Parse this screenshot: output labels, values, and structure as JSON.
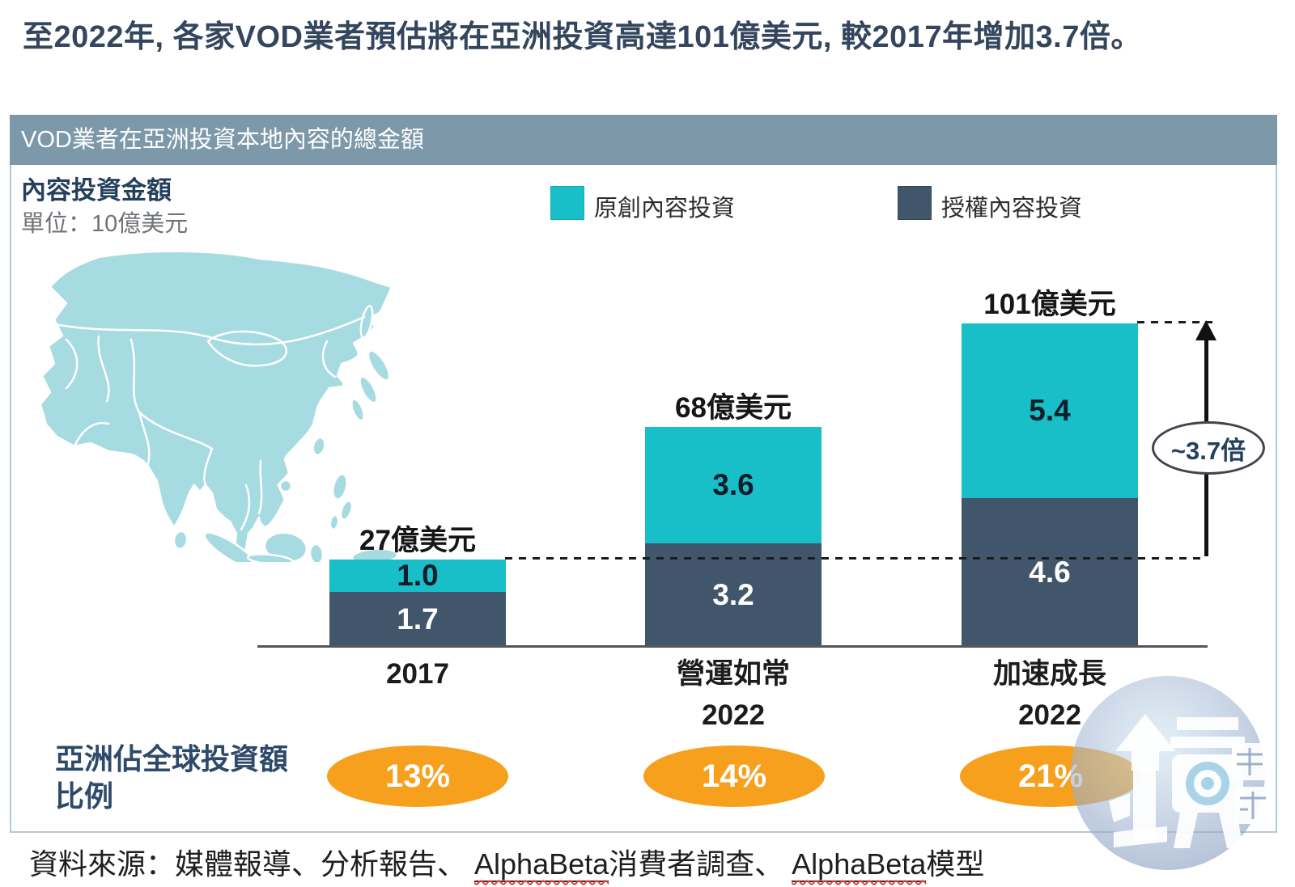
{
  "page_title": "至2022年, 各家VOD業者預估將在亞洲投資高達101億美元, 較2017年增加3.7倍。",
  "panel": {
    "header": "VOD業者在亞洲投資本地內容的總金額",
    "metric_title": "內容投資金額",
    "metric_unit": "單位：10億美元"
  },
  "legend": [
    {
      "label": "原創內容投資",
      "color": "#18bfc9"
    },
    {
      "label": "授權內容投資",
      "color": "#42566b"
    }
  ],
  "chart_data": {
    "type": "bar",
    "stacked": true,
    "title": "VOD業者在亞洲投資本地內容的總金額",
    "ylabel": "內容投資金額 (單位：10億美元)",
    "xlabel": "",
    "ylim": [
      0,
      10.5
    ],
    "gridlines": false,
    "legend_position": "top",
    "categories": [
      "2017",
      "營運如常 2022",
      "加速成長 2022"
    ],
    "series": [
      {
        "name": "原創內容投資",
        "color": "#18bfc9",
        "values": [
          1.0,
          3.6,
          5.4
        ]
      },
      {
        "name": "授權內容投資",
        "color": "#42566b",
        "values": [
          1.7,
          3.2,
          4.6
        ]
      }
    ],
    "totals": [
      2.7,
      6.8,
      10.1
    ],
    "asia_share_of_global": [
      "13%",
      "14%",
      "21%"
    ],
    "bars": [
      {
        "total_label": "27億美元",
        "original": 1.0,
        "original_label": "1.0",
        "licensed": 1.7,
        "licensed_label": "1.7",
        "x_line1": "2017",
        "x_line2": "",
        "share": "13%"
      },
      {
        "total_label": "68億美元",
        "original": 3.6,
        "original_label": "3.6",
        "licensed": 3.2,
        "licensed_label": "3.2",
        "x_line1": "營運如常",
        "x_line2": "2022",
        "share": "14%"
      },
      {
        "total_label": "101億美元",
        "original": 5.4,
        "original_label": "5.4",
        "licensed": 4.6,
        "licensed_label": "4.6",
        "x_line1": "加速成長",
        "x_line2": "2022",
        "share": "21%"
      }
    ],
    "annotations": {
      "multiplier": "~3.7倍"
    }
  },
  "share_row": {
    "label_line1": "亞洲佔全球投資額",
    "label_line2": "比例"
  },
  "source": {
    "prefix": "資料來源：媒體報導、分析報告、 ",
    "alphabeta1": "AlphaBeta",
    "mid1": "消費者調查、 ",
    "alphabeta2": "AlphaBeta",
    "suffix": "模型"
  },
  "watermark": {
    "label": "鏡週刊"
  },
  "colors": {
    "accent_teal": "#18bfc9",
    "accent_dark_blue": "#42566b",
    "panel_header": "#7d99a9",
    "panel_border": "#b3c8d5",
    "map_fill": "#a6dbe2",
    "share_orange": "#f7a01d",
    "title_navy": "#33465e"
  }
}
